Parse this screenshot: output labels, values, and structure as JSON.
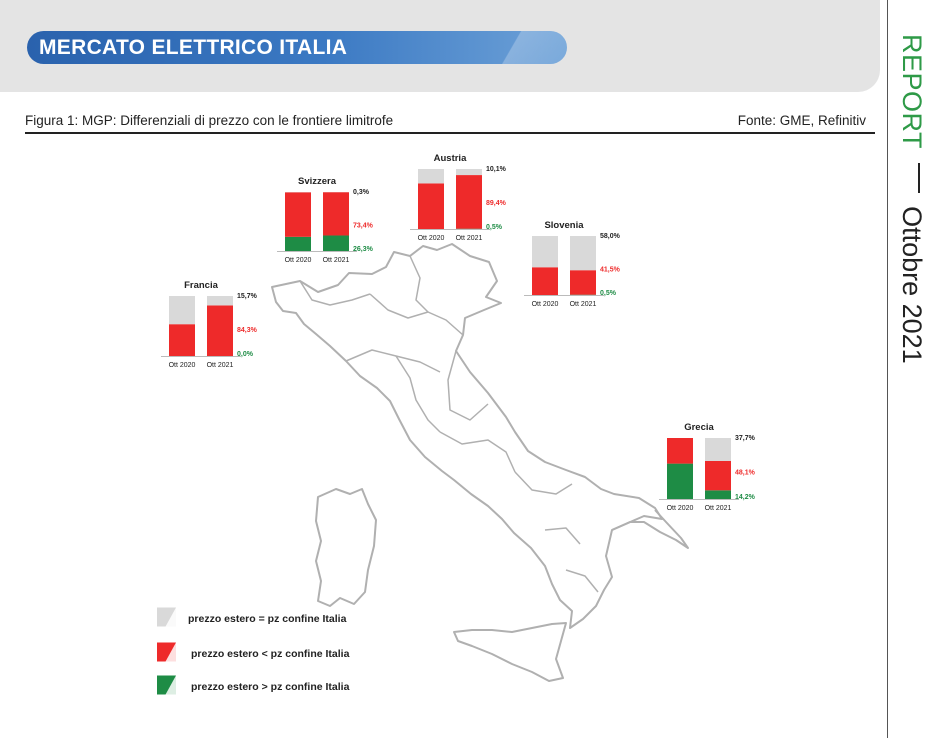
{
  "header": {
    "title": "MERCATO ELETTRICO ITALIA",
    "figure_caption": "Figura 1: MGP: Differenziali di prezzo con le frontiere limitrofe",
    "source": "Fonte: GME, Refinitiv"
  },
  "sidebar": {
    "report_label": "REPORT",
    "date_label": "Ottobre 2021"
  },
  "colors": {
    "equal": "#d9d9d9",
    "lower": "#ee2a2a",
    "higher": "#1e8c45",
    "accent_green": "#2e9a47",
    "title_blue": "#2f6db5"
  },
  "legend": [
    {
      "key": "equal",
      "label": "prezzo estero = pz confine Italia"
    },
    {
      "key": "lower",
      "label": "prezzo estero < pz confine Italia"
    },
    {
      "key": "higher",
      "label": "prezzo estero > pz confine Italia"
    }
  ],
  "chart_data": [
    {
      "type": "bar",
      "stacked": true,
      "title": "Svizzera",
      "categories": [
        "Ott 2020",
        "Ott 2021"
      ],
      "series": [
        {
          "key": "higher",
          "values": [
            24,
            26.3
          ]
        },
        {
          "key": "lower",
          "values": [
            75.5,
            73.4
          ]
        },
        {
          "key": "equal",
          "values": [
            0.5,
            0.3
          ]
        }
      ],
      "labels": {
        "equal": "0,3%",
        "lower": "73,4%",
        "higher": "26,3%"
      }
    },
    {
      "type": "bar",
      "stacked": true,
      "title": "Austria",
      "categories": [
        "Ott 2020",
        "Ott 2021"
      ],
      "series": [
        {
          "key": "higher",
          "values": [
            0,
            0.5
          ]
        },
        {
          "key": "lower",
          "values": [
            76,
            89.4
          ]
        },
        {
          "key": "equal",
          "values": [
            24,
            10.1
          ]
        }
      ],
      "labels": {
        "equal": "10,1%",
        "lower": "89,4%",
        "higher": "0,5%"
      }
    },
    {
      "type": "bar",
      "stacked": true,
      "title": "Slovenia",
      "categories": [
        "Ott 2020",
        "Ott 2021"
      ],
      "series": [
        {
          "key": "higher",
          "values": [
            0,
            0.5
          ]
        },
        {
          "key": "lower",
          "values": [
            47,
            41.5
          ]
        },
        {
          "key": "equal",
          "values": [
            53,
            58.0
          ]
        }
      ],
      "labels": {
        "equal": "58,0%",
        "lower": "41,5%",
        "higher": "0,5%"
      }
    },
    {
      "type": "bar",
      "stacked": true,
      "title": "Francia",
      "categories": [
        "Ott 2020",
        "Ott 2021"
      ],
      "series": [
        {
          "key": "higher",
          "values": [
            0,
            0.0
          ]
        },
        {
          "key": "lower",
          "values": [
            53,
            84.3
          ]
        },
        {
          "key": "equal",
          "values": [
            47,
            15.7
          ]
        }
      ],
      "labels": {
        "equal": "15,7%",
        "lower": "84,3%",
        "higher": "0,0%"
      }
    },
    {
      "type": "bar",
      "stacked": true,
      "title": "Grecia",
      "categories": [
        "Ott 2020",
        "Ott 2021"
      ],
      "series": [
        {
          "key": "higher",
          "values": [
            58,
            14.2
          ]
        },
        {
          "key": "lower",
          "values": [
            42,
            48.1
          ]
        },
        {
          "key": "equal",
          "values": [
            0,
            37.7
          ]
        }
      ],
      "labels": {
        "equal": "37,7%",
        "lower": "48,1%",
        "higher": "14,2%"
      }
    }
  ]
}
